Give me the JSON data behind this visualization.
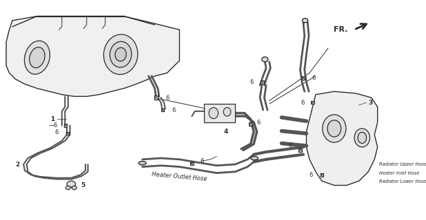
{
  "bg_color": "#ffffff",
  "fg_color": "#2a2a2a",
  "gray": "#888888",
  "darkgray": "#555555",
  "labels": {
    "fr": "FR.",
    "heater_outlet": "Heater Outlet Hose",
    "radiator_upper": "Radiator Upper Hose",
    "heater_inlet": "Heater Inlet Hose",
    "radiator_lower": "Radiator Lower Hose"
  },
  "figsize": [
    6.18,
    3.2
  ],
  "dpi": 100
}
